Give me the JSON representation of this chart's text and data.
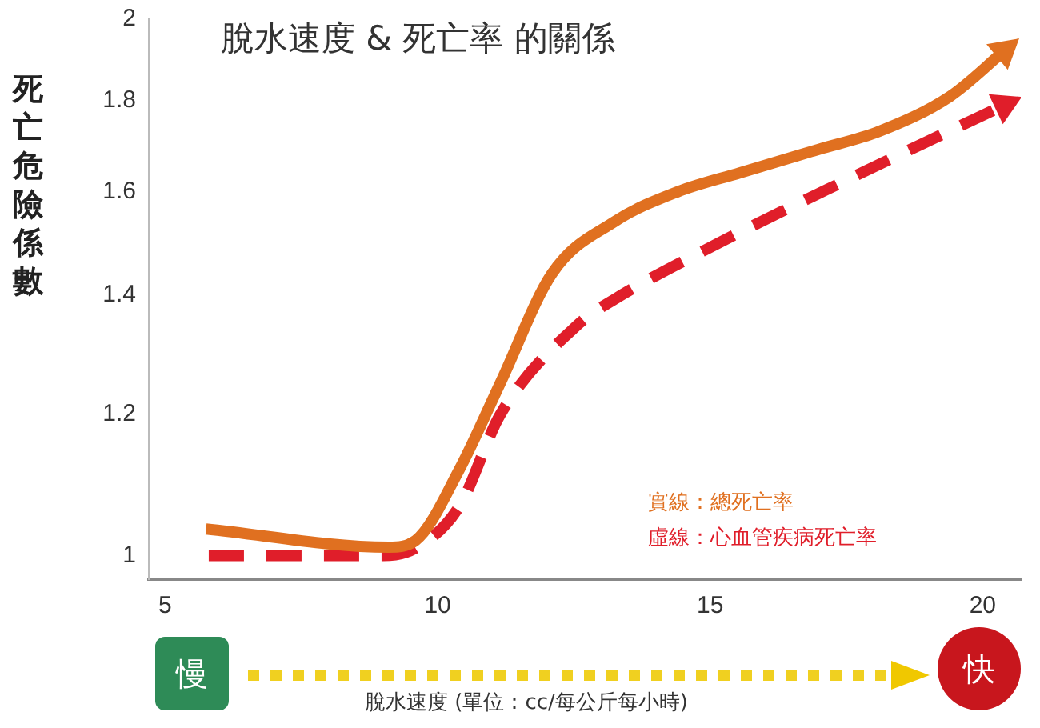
{
  "chart_data": {
    "type": "line",
    "title": "脫水速度 & 死亡率 的關係",
    "xlabel": "脫水速度 (單位：cc/每公斤每小時)",
    "ylabel": "死亡危險係數",
    "series": [
      {
        "color": "#e07020",
        "line_style": "solid",
        "x": [
          5.75,
          9.1,
          9.6,
          10.4,
          11.15,
          12.1,
          13.25,
          14.4,
          15.55,
          16.98,
          18.1,
          19.4,
          20.4
        ],
        "values": [
          1.035,
          1.011,
          1.02,
          1.118,
          1.25,
          1.44,
          1.54,
          1.6,
          1.64,
          1.69,
          1.73,
          1.81,
          1.92
        ]
      },
      {
        "color": "#e01e2a",
        "line_style": "dashed",
        "x": [
          5.8,
          9.0,
          9.6,
          10.4,
          11.15,
          12.6,
          13.2,
          15.2,
          17.6,
          19.2,
          20.4
        ],
        "values": [
          1.0,
          1.0,
          1.01,
          1.066,
          1.2,
          1.35,
          1.39,
          1.5,
          1.63,
          1.72,
          1.79
        ]
      }
    ],
    "xlim": [
      4.7,
      20.7
    ],
    "xticks": [
      5,
      10,
      15,
      20
    ],
    "ylim": [
      0.97,
      2
    ],
    "yticks": [
      1,
      1.2,
      1.4,
      1.6,
      1.8,
      2
    ],
    "log": "y",
    "grid": false,
    "legend": false,
    "marker": "none",
    "annotations": [
      "實線：總死亡率",
      "虛線：心血管疾病死亡率",
      "慢",
      "快"
    ]
  }
}
